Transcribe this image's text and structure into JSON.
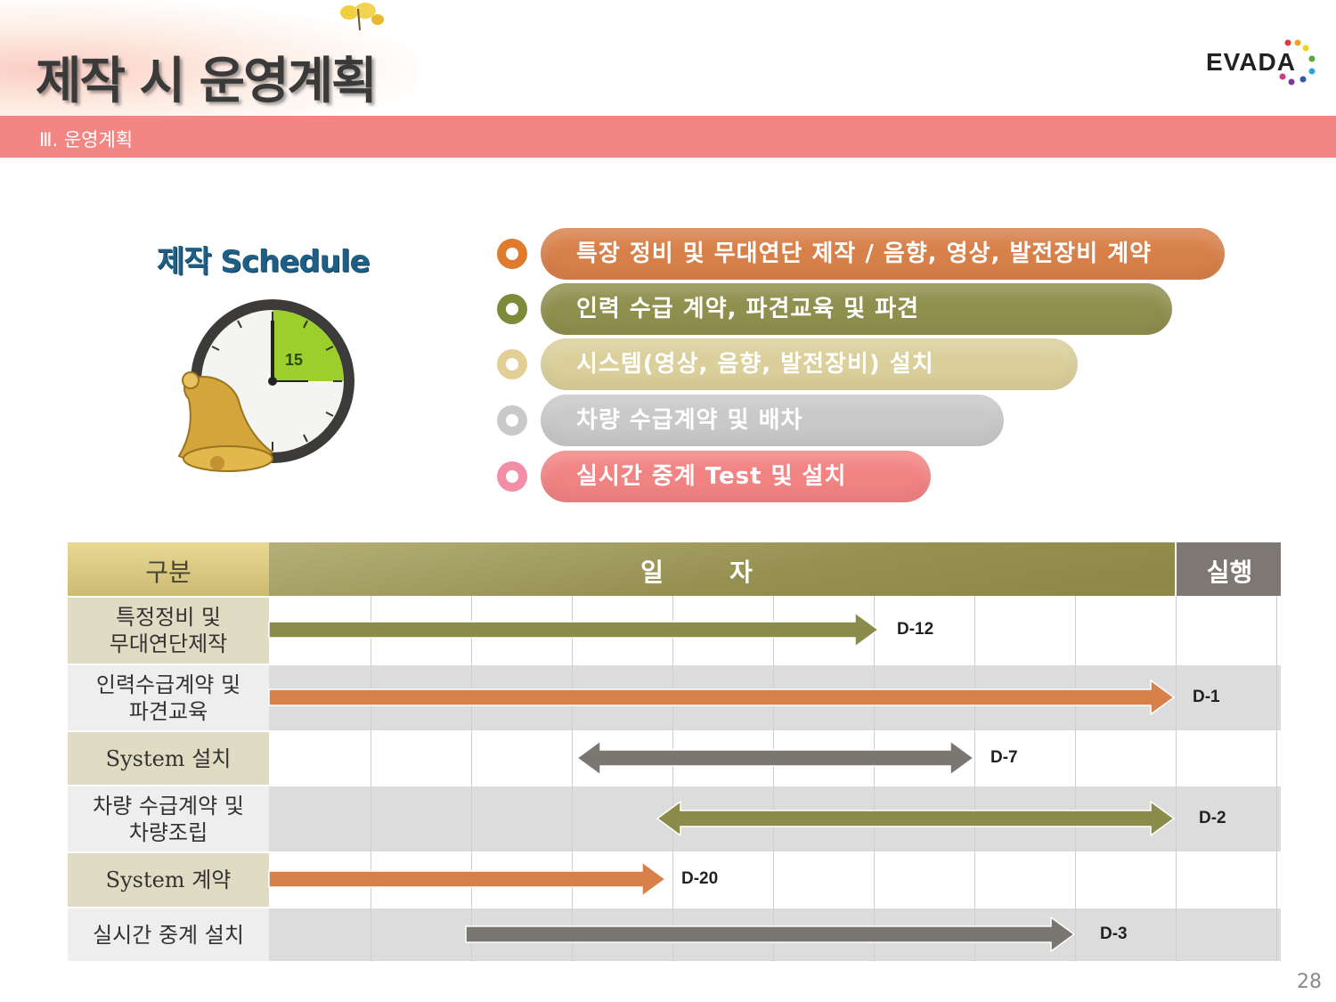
{
  "header": {
    "title": "제작 시 운영계획",
    "section": "Ⅲ. 운영계획",
    "logo_text": "EVADA"
  },
  "schedule": {
    "title": "제작 Schedule",
    "clock_number": "15",
    "items": [
      {
        "label": "특장 정비 및 무대연단 제작 /  음향, 영상, 발전장비 계약",
        "color": "#d8804a"
      },
      {
        "label": "인력 수급 계약, 파견교육 및 파견",
        "color": "#8f8f4e"
      },
      {
        "label": "시스템(영상, 음향, 발전장비) 설치",
        "color": "#dbcf9b"
      },
      {
        "label": "차량 수급계약 및 배차",
        "color": "#c9c9c9"
      },
      {
        "label": "실시간 중계 Test 및 설치",
        "color": "#f28383"
      }
    ]
  },
  "table": {
    "col_category": "구분",
    "col_date_1": "일",
    "col_date_2": "자",
    "col_exec": "실행",
    "rows": [
      {
        "label": "특정정비 및\n무대연단제작",
        "deadline": "D-12",
        "bar_color": "#8c8c4a"
      },
      {
        "label": "인력수급계약 및\n파견교육",
        "deadline": "D-1",
        "bar_color": "#d8804a"
      },
      {
        "label": "System 설치",
        "deadline": "D-7",
        "bar_color": "#7a7670"
      },
      {
        "label": "차량 수급계약 및\n차량조립",
        "deadline": "D-2",
        "bar_color": "#8c8c4a"
      },
      {
        "label": "System 계약",
        "deadline": "D-20",
        "bar_color": "#d8804a"
      },
      {
        "label": "실시간 중계 설치",
        "deadline": "D-3",
        "bar_color": "#7a7670"
      }
    ]
  },
  "page_number": "28"
}
